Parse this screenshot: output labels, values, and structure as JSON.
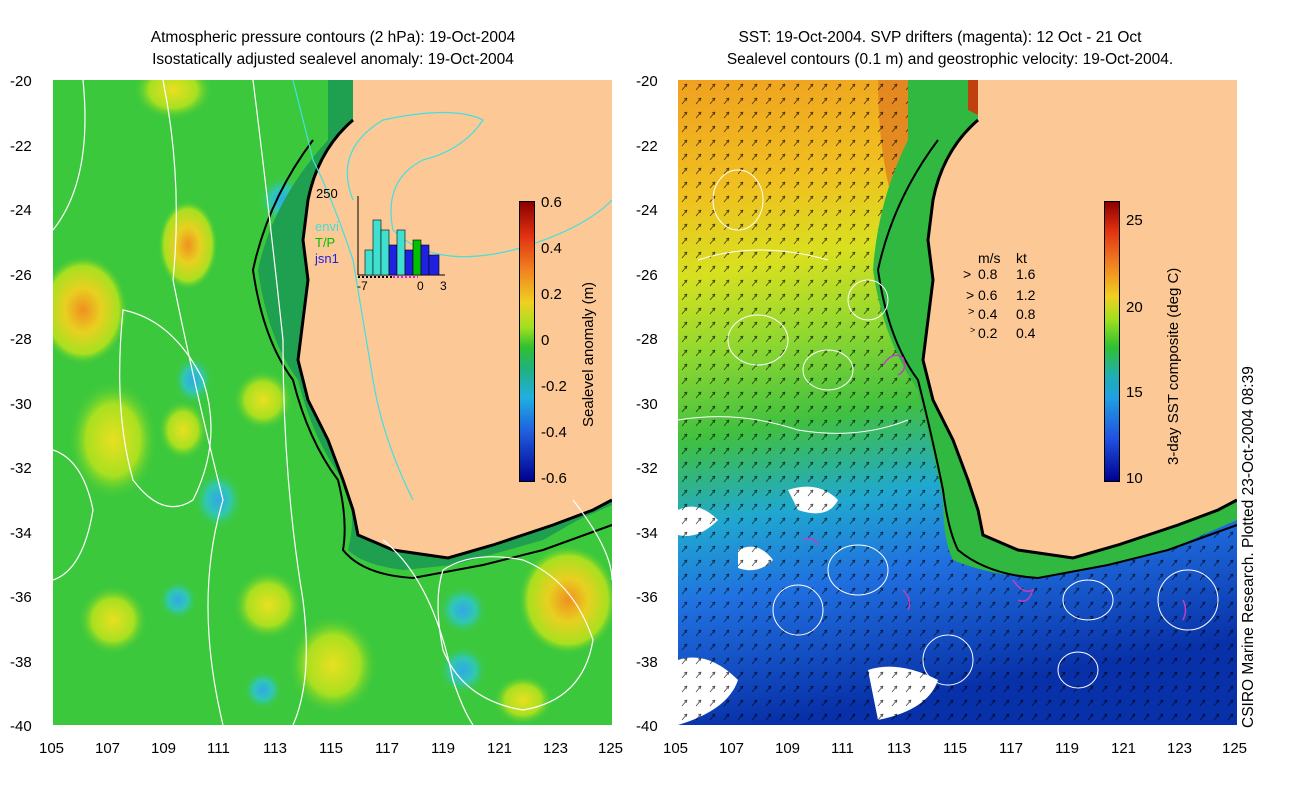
{
  "left_panel": {
    "title_line1": "Atmospheric pressure contours (2 hPa): 19-Oct-2004",
    "title_line2": "Isostatically adjusted sealevel anomaly: 19-Oct-2004",
    "colorbar_label": "Sealevel anomaly (m)",
    "colorbar_ticks": [
      "0.6",
      "0.4",
      "0.2",
      "0",
      "-0.2",
      "-0.4",
      "-0.6"
    ],
    "inset": {
      "ymax_label": "250",
      "legend": [
        {
          "label": "envi",
          "color": "#40e0d0"
        },
        {
          "label": "T/P",
          "color": "#00c000"
        },
        {
          "label": "jsn1",
          "color": "#2020e0"
        }
      ],
      "x_ticks": [
        "-7",
        "0",
        "3"
      ]
    }
  },
  "right_panel": {
    "title_line1": "SST: 19-Oct-2004. SVP drifters (magenta): 12 Oct - 21 Oct",
    "title_line2": "Sealevel contours (0.1 m) and geostrophic velocity: 19-Oct-2004.",
    "colorbar_label": "3-day SST composite (deg C)",
    "colorbar_ticks": [
      "25",
      "20",
      "15",
      "10"
    ],
    "velocity_legend": {
      "header_ms": "m/s",
      "header_kt": "kt",
      "rows": [
        {
          "ms": "0.8",
          "kt": "1.6"
        },
        {
          "ms": "0.6",
          "kt": "1.2"
        },
        {
          "ms": "0.4",
          "kt": "0.8"
        },
        {
          "ms": "0.2",
          "kt": "0.4"
        }
      ]
    }
  },
  "axes": {
    "y_ticks": [
      "-20",
      "-22",
      "-24",
      "-26",
      "-28",
      "-30",
      "-32",
      "-34",
      "-36",
      "-38",
      "-40"
    ],
    "x_ticks": [
      "105",
      "107",
      "109",
      "111",
      "113",
      "115",
      "117",
      "119",
      "121",
      "123",
      "125"
    ]
  },
  "credit": "CSIRO Marine Research. Plotted 23-Oct-2004 08:39",
  "colors": {
    "land": "#fcc896",
    "ocean_left": "#3cc83c",
    "coast_line": "#000000",
    "contour": "#ffffff",
    "drifter": "#c040c0",
    "isobath": "#40e0e0"
  }
}
